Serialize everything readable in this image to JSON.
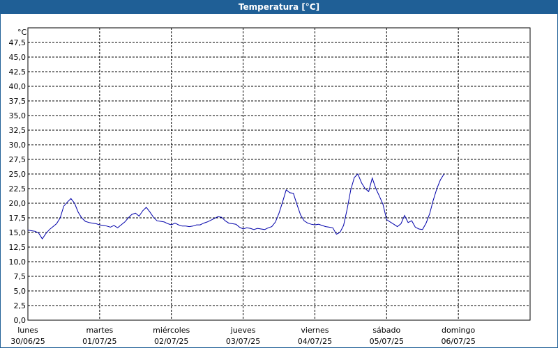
{
  "window": {
    "title": "Temperatura [°C]"
  },
  "chart_data": {
    "type": "line",
    "ylabel": "°C",
    "ylim": [
      0,
      47.5
    ],
    "ystep": 2.5,
    "grid": true,
    "line_color": "#0000aa",
    "y_ticks": [
      "0,0",
      "2,5",
      "5,0",
      "7,5",
      "10,0",
      "12,5",
      "15,0",
      "17,5",
      "20,0",
      "22,5",
      "25,0",
      "27,5",
      "30,0",
      "32,5",
      "35,0",
      "37,5",
      "40,0",
      "42,5",
      "45,0",
      "47,5"
    ],
    "x_ticks": [
      {
        "day": "lunes",
        "date": "30/06/25"
      },
      {
        "day": "martes",
        "date": "01/07/25"
      },
      {
        "day": "miércoles",
        "date": "02/07/25"
      },
      {
        "day": "jueves",
        "date": "03/07/25"
      },
      {
        "day": "viernes",
        "date": "04/07/25"
      },
      {
        "day": "sábado",
        "date": "05/07/25"
      },
      {
        "day": "domingo",
        "date": "06/07/25"
      }
    ],
    "xlim": [
      0,
      7
    ],
    "series": [
      {
        "x": [
          0,
          0.05,
          0.1,
          0.15,
          0.2,
          0.25,
          0.3,
          0.35,
          0.4,
          0.45,
          0.5,
          0.55,
          0.6,
          0.65,
          0.7,
          0.75,
          0.8,
          0.85,
          0.9,
          0.95,
          1.0,
          1.05,
          1.1,
          1.15,
          1.2,
          1.25,
          1.3,
          1.35,
          1.4,
          1.45,
          1.5,
          1.55,
          1.6,
          1.65,
          1.7,
          1.75,
          1.8,
          1.85,
          1.9,
          1.95,
          2.0,
          2.05,
          2.1,
          2.15,
          2.2,
          2.25,
          2.3,
          2.35,
          2.4,
          2.45,
          2.5,
          2.55,
          2.6,
          2.65,
          2.7,
          2.75,
          2.8,
          2.85,
          2.9,
          2.95,
          3.0,
          3.05,
          3.1,
          3.15,
          3.2,
          3.25,
          3.3,
          3.35,
          3.4,
          3.45,
          3.5,
          3.55,
          3.6,
          3.65,
          3.7,
          3.75,
          3.8,
          3.85,
          3.9,
          3.95,
          4.0,
          4.05,
          4.1,
          4.15,
          4.2,
          4.25,
          4.3,
          4.35,
          4.4,
          4.45,
          4.5,
          4.55,
          4.6,
          4.65,
          4.7,
          4.75,
          4.8,
          4.85,
          4.9,
          4.95,
          5.0,
          5.05,
          5.1,
          5.15,
          5.2,
          5.25,
          5.3,
          5.35,
          5.4,
          5.45,
          5.5,
          5.55,
          5.6,
          5.65,
          5.7,
          5.75,
          5.8
        ],
        "y": [
          15.4,
          15.3,
          15.2,
          14.9,
          13.9,
          14.8,
          15.5,
          16.0,
          16.5,
          17.5,
          19.5,
          20.2,
          20.8,
          20.0,
          18.5,
          17.5,
          16.9,
          16.7,
          16.6,
          16.5,
          16.3,
          16.2,
          16.1,
          15.9,
          16.2,
          15.8,
          16.3,
          16.8,
          17.5,
          18.1,
          18.3,
          17.8,
          18.7,
          19.3,
          18.5,
          17.6,
          17.0,
          16.9,
          16.8,
          16.5,
          16.3,
          16.6,
          16.3,
          16.1,
          16.1,
          16.0,
          16.1,
          16.3,
          16.3,
          16.6,
          16.8,
          17.1,
          17.4,
          17.7,
          17.6,
          17.0,
          16.6,
          16.5,
          16.4,
          15.9,
          15.6,
          15.8,
          15.7,
          15.5,
          15.7,
          15.6,
          15.5,
          15.8,
          16.0,
          16.8,
          18.3,
          20.2,
          22.3,
          21.8,
          21.7,
          19.8,
          18.0,
          17.0,
          16.6,
          16.4,
          16.3,
          16.4,
          16.2,
          16.0,
          15.9,
          15.8,
          14.7,
          15.0,
          16.2,
          19.0,
          22.3,
          24.4,
          25.0,
          23.5,
          22.5,
          22.0,
          24.3,
          22.5,
          21.2,
          19.8,
          17.2,
          16.8,
          16.4,
          16.0,
          16.5,
          17.9,
          16.7,
          17.0,
          15.9,
          15.6,
          15.5,
          16.6,
          18.2,
          20.5,
          22.5,
          24.0,
          25.0
        ]
      }
    ]
  }
}
